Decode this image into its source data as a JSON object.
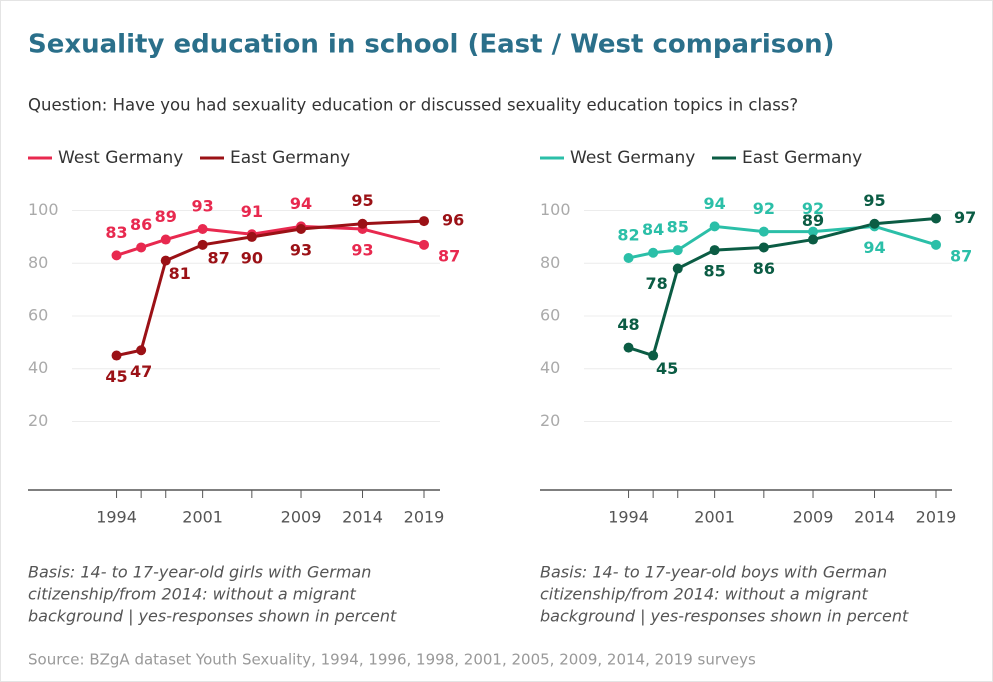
{
  "title": "Sexuality education in school (East / West comparison)",
  "subtitle": "Question: Have you had sexuality education or discussed sexuality education topics in class?",
  "source": "Source: BZgA dataset Youth Sexuality, 1994, 1996, 1998, 2001, 2005, 2009, 2014, 2019 surveys",
  "chart_data": [
    {
      "type": "line",
      "x": [
        1994,
        1996,
        1998,
        2001,
        2005,
        2009,
        2014,
        2019
      ],
      "series": [
        {
          "name": "West Germany",
          "color": "#e8294f",
          "values": [
            83,
            86,
            89,
            93,
            91,
            94,
            93,
            87
          ]
        },
        {
          "name": "East Germany",
          "color": "#9b1116",
          "values": [
            45,
            47,
            81,
            87,
            90,
            93,
            95,
            96
          ]
        }
      ],
      "xlim": [
        1986.8,
        2020.3
      ],
      "xticks": [
        1994,
        2001,
        2009,
        2014,
        2019
      ],
      "ylim": [
        -6,
        104
      ],
      "yticks": [
        20,
        40,
        60,
        80,
        100
      ],
      "grid": true,
      "note": [
        "Basis: 14- to 17-year-old girls with German",
        "citizenship/from 2014: without a migrant",
        "background | yes-responses shown in percent"
      ]
    },
    {
      "type": "line",
      "x": [
        1994,
        1996,
        1998,
        2001,
        2005,
        2009,
        2014,
        2019
      ],
      "series": [
        {
          "name": "West Germany",
          "color": "#2bbfa8",
          "values": [
            82,
            84,
            85,
            94,
            92,
            92,
            94,
            87
          ]
        },
        {
          "name": "East Germany",
          "color": "#0b5c44",
          "values": [
            48,
            45,
            78,
            85,
            86,
            89,
            95,
            97
          ]
        }
      ],
      "xlim": [
        1986.8,
        2020.3
      ],
      "xticks": [
        1994,
        2001,
        2009,
        2014,
        2019
      ],
      "ylim": [
        -6,
        104
      ],
      "yticks": [
        20,
        40,
        60,
        80,
        100
      ],
      "grid": true,
      "note": [
        "Basis: 14- to 17-year-old boys with German",
        "citizenship/from 2014: without a migrant",
        "background | yes-responses shown in percent"
      ]
    }
  ]
}
